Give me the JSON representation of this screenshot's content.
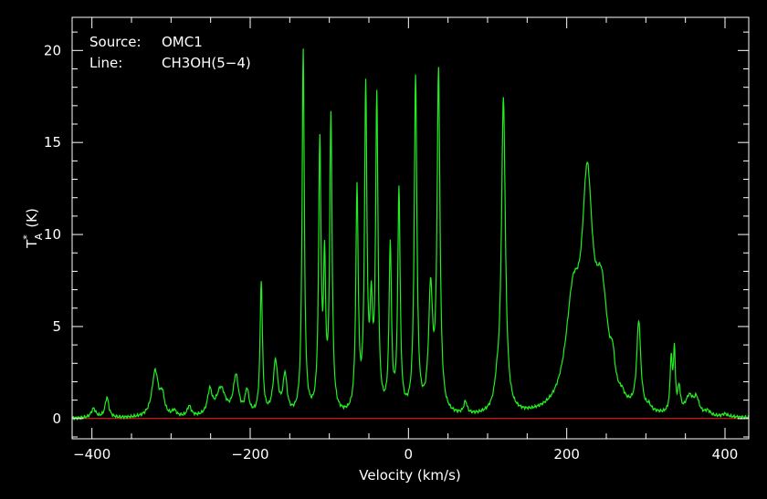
{
  "chart_data": {
    "type": "line",
    "xlabel": "Velocity (km/s)",
    "ylabel": "T*A (K)",
    "ylabel_parts": {
      "main": "T",
      "sup": "*",
      "sub": "A",
      "unit": "(K)"
    },
    "xlim": [
      -425,
      430
    ],
    "ylim": [
      -1.1,
      21.8
    ],
    "x_ticks": [
      -400,
      -200,
      0,
      200,
      400
    ],
    "y_ticks": [
      0,
      5,
      10,
      15,
      20
    ],
    "x_tick_labels": [
      "−400",
      "−200",
      "0",
      "200",
      "400"
    ],
    "y_tick_labels": [
      "0",
      "5",
      "10",
      "15",
      "20"
    ],
    "annotations": [
      {
        "label": "Source:",
        "value": "OMC1"
      },
      {
        "label": "Line:",
        "value": "CH3OH(5−4)"
      }
    ],
    "baseline": {
      "y": 0,
      "color": "#ff2020"
    },
    "series": [
      {
        "color": "#22ee22",
        "baseline_level": 0.0,
        "lines": [
          {
            "center": -398,
            "height": 0.5,
            "width": 3.5
          },
          {
            "center": -381,
            "height": 1.1,
            "width": 2.8
          },
          {
            "center": -320,
            "height": 2.5,
            "width": 5
          },
          {
            "center": -311,
            "height": 1.0,
            "width": 3
          },
          {
            "center": -296,
            "height": 0.3,
            "width": 3
          },
          {
            "center": -277,
            "height": 0.55,
            "width": 3
          },
          {
            "center": -251,
            "height": 1.3,
            "width": 3.5
          },
          {
            "center": -237,
            "height": 1.5,
            "width": 7
          },
          {
            "center": -218,
            "height": 2.1,
            "width": 4
          },
          {
            "center": -204,
            "height": 1.3,
            "width": 3
          },
          {
            "center": -186,
            "height": 7.2,
            "width": 1.8
          },
          {
            "center": -168,
            "height": 2.9,
            "width": 3.5
          },
          {
            "center": -156,
            "height": 2.1,
            "width": 3
          },
          {
            "center": -133,
            "height": 19.8,
            "width": 1.7
          },
          {
            "center": -112,
            "height": 14.5,
            "width": 1.8
          },
          {
            "center": -106,
            "height": 7.5,
            "width": 1.6
          },
          {
            "center": -98,
            "height": 16.0,
            "width": 1.8
          },
          {
            "center": -65,
            "height": 12.0,
            "width": 1.8
          },
          {
            "center": -54,
            "height": 17.3,
            "width": 1.8
          },
          {
            "center": -47,
            "height": 5.0,
            "width": 2
          },
          {
            "center": -40,
            "height": 16.8,
            "width": 1.8
          },
          {
            "center": -23,
            "height": 9.0,
            "width": 1.8
          },
          {
            "center": -12,
            "height": 12.0,
            "width": 1.8
          },
          {
            "center": 9,
            "height": 18.2,
            "width": 2
          },
          {
            "center": 28,
            "height": 6.5,
            "width": 3
          },
          {
            "center": 38,
            "height": 18.3,
            "width": 2.2
          },
          {
            "center": 72,
            "height": 0.65,
            "width": 2.5
          },
          {
            "center": 120,
            "height": 17.0,
            "width": 3
          },
          {
            "center": 112,
            "height": 1.0,
            "width": 4
          },
          {
            "center": 208,
            "height": 5.5,
            "width": 11
          },
          {
            "center": 226,
            "height": 11.0,
            "width": 8
          },
          {
            "center": 244,
            "height": 5.8,
            "width": 10
          },
          {
            "center": 258,
            "height": 1.3,
            "width": 3
          },
          {
            "center": 270,
            "height": 0.3,
            "width": 3
          },
          {
            "center": 291,
            "height": 4.8,
            "width": 3
          },
          {
            "center": 304,
            "height": 0.25,
            "width": 3
          },
          {
            "center": 332,
            "height": 2.9,
            "width": 1.6
          },
          {
            "center": 336,
            "height": 3.3,
            "width": 1.4
          },
          {
            "center": 342,
            "height": 1.3,
            "width": 2
          },
          {
            "center": 355,
            "height": 1.0,
            "width": 6
          },
          {
            "center": 364,
            "height": 0.8,
            "width": 4
          },
          {
            "center": 378,
            "height": 0.25,
            "width": 4
          },
          {
            "center": 400,
            "height": 0.15,
            "width": 4
          }
        ]
      }
    ]
  }
}
